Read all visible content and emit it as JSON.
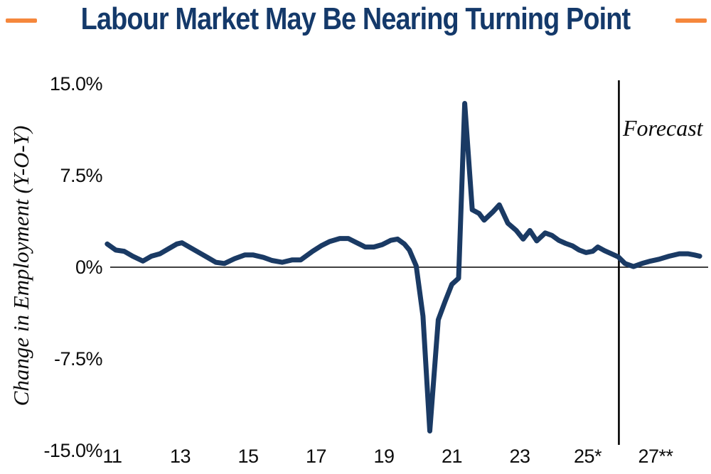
{
  "header": {
    "title": "Labour Market May Be Nearing Turning Point",
    "title_color": "#14396A",
    "accent_color": "#F5873C"
  },
  "chart_data": {
    "type": "line",
    "title": "Labour Market May Be Nearing Turning Point",
    "xlabel": "",
    "ylabel": "Change in Employment (Y-O-Y)",
    "grid": false,
    "zero_line": true,
    "ylim": [
      -15.0,
      15.0
    ],
    "xlim": [
      10.8,
      28.4
    ],
    "y_ticks": [
      {
        "value": 15,
        "label": "15.0%"
      },
      {
        "value": 7.5,
        "label": "7.5%"
      },
      {
        "value": 0,
        "label": "0%"
      },
      {
        "value": -7.5,
        "label": "-7.5%"
      },
      {
        "value": -15,
        "label": "-15.0%"
      }
    ],
    "x_ticks": [
      {
        "value": 11,
        "label": "11"
      },
      {
        "value": 13,
        "label": "13"
      },
      {
        "value": 15,
        "label": "15"
      },
      {
        "value": 17,
        "label": "17"
      },
      {
        "value": 19,
        "label": "19"
      },
      {
        "value": 21,
        "label": "21"
      },
      {
        "value": 23,
        "label": "23"
      },
      {
        "value": 25,
        "label": "25*"
      },
      {
        "value": 27,
        "label": "27**"
      }
    ],
    "annotations": {
      "forecast_label": "Forecast",
      "forecast_line_x": 25.92
    },
    "series": [
      {
        "name": "Change in Employment (Y-O-Y), %",
        "color": "#1A3A64",
        "points": [
          [
            10.85,
            1.9
          ],
          [
            11.1,
            1.4
          ],
          [
            11.35,
            1.3
          ],
          [
            11.6,
            0.9
          ],
          [
            11.9,
            0.5
          ],
          [
            12.15,
            0.9
          ],
          [
            12.4,
            1.1
          ],
          [
            12.65,
            1.5
          ],
          [
            12.9,
            1.9
          ],
          [
            13.05,
            2.0
          ],
          [
            13.3,
            1.6
          ],
          [
            13.55,
            1.2
          ],
          [
            13.8,
            0.8
          ],
          [
            14.05,
            0.4
          ],
          [
            14.3,
            0.3
          ],
          [
            14.6,
            0.7
          ],
          [
            14.9,
            1.0
          ],
          [
            15.15,
            1.0
          ],
          [
            15.45,
            0.8
          ],
          [
            15.7,
            0.55
          ],
          [
            16.0,
            0.4
          ],
          [
            16.3,
            0.6
          ],
          [
            16.55,
            0.6
          ],
          [
            16.9,
            1.3
          ],
          [
            17.15,
            1.75
          ],
          [
            17.4,
            2.1
          ],
          [
            17.7,
            2.35
          ],
          [
            17.95,
            2.35
          ],
          [
            18.2,
            2.0
          ],
          [
            18.45,
            1.65
          ],
          [
            18.7,
            1.65
          ],
          [
            18.95,
            1.85
          ],
          [
            19.2,
            2.2
          ],
          [
            19.4,
            2.3
          ],
          [
            19.6,
            1.9
          ],
          [
            19.75,
            1.4
          ],
          [
            19.95,
            0.1
          ],
          [
            20.15,
            -4.0
          ],
          [
            20.35,
            -13.4
          ],
          [
            20.6,
            -4.3
          ],
          [
            20.8,
            -2.8
          ],
          [
            21.0,
            -1.4
          ],
          [
            21.2,
            -0.9
          ],
          [
            21.38,
            13.4
          ],
          [
            21.6,
            4.7
          ],
          [
            21.8,
            4.4
          ],
          [
            21.95,
            3.85
          ],
          [
            22.2,
            4.5
          ],
          [
            22.4,
            5.1
          ],
          [
            22.65,
            3.6
          ],
          [
            22.9,
            3.0
          ],
          [
            23.1,
            2.3
          ],
          [
            23.3,
            3.0
          ],
          [
            23.5,
            2.15
          ],
          [
            23.75,
            2.8
          ],
          [
            23.95,
            2.6
          ],
          [
            24.15,
            2.2
          ],
          [
            24.35,
            1.95
          ],
          [
            24.55,
            1.75
          ],
          [
            24.75,
            1.4
          ],
          [
            24.95,
            1.2
          ],
          [
            25.15,
            1.3
          ],
          [
            25.3,
            1.65
          ],
          [
            25.5,
            1.35
          ],
          [
            25.7,
            1.1
          ],
          [
            25.9,
            0.85
          ],
          [
            26.1,
            0.3
          ],
          [
            26.35,
            0.05
          ],
          [
            26.6,
            0.3
          ],
          [
            26.85,
            0.5
          ],
          [
            27.1,
            0.65
          ],
          [
            27.4,
            0.9
          ],
          [
            27.7,
            1.1
          ],
          [
            27.95,
            1.1
          ],
          [
            28.15,
            1.0
          ],
          [
            28.3,
            0.9
          ]
        ]
      }
    ]
  }
}
